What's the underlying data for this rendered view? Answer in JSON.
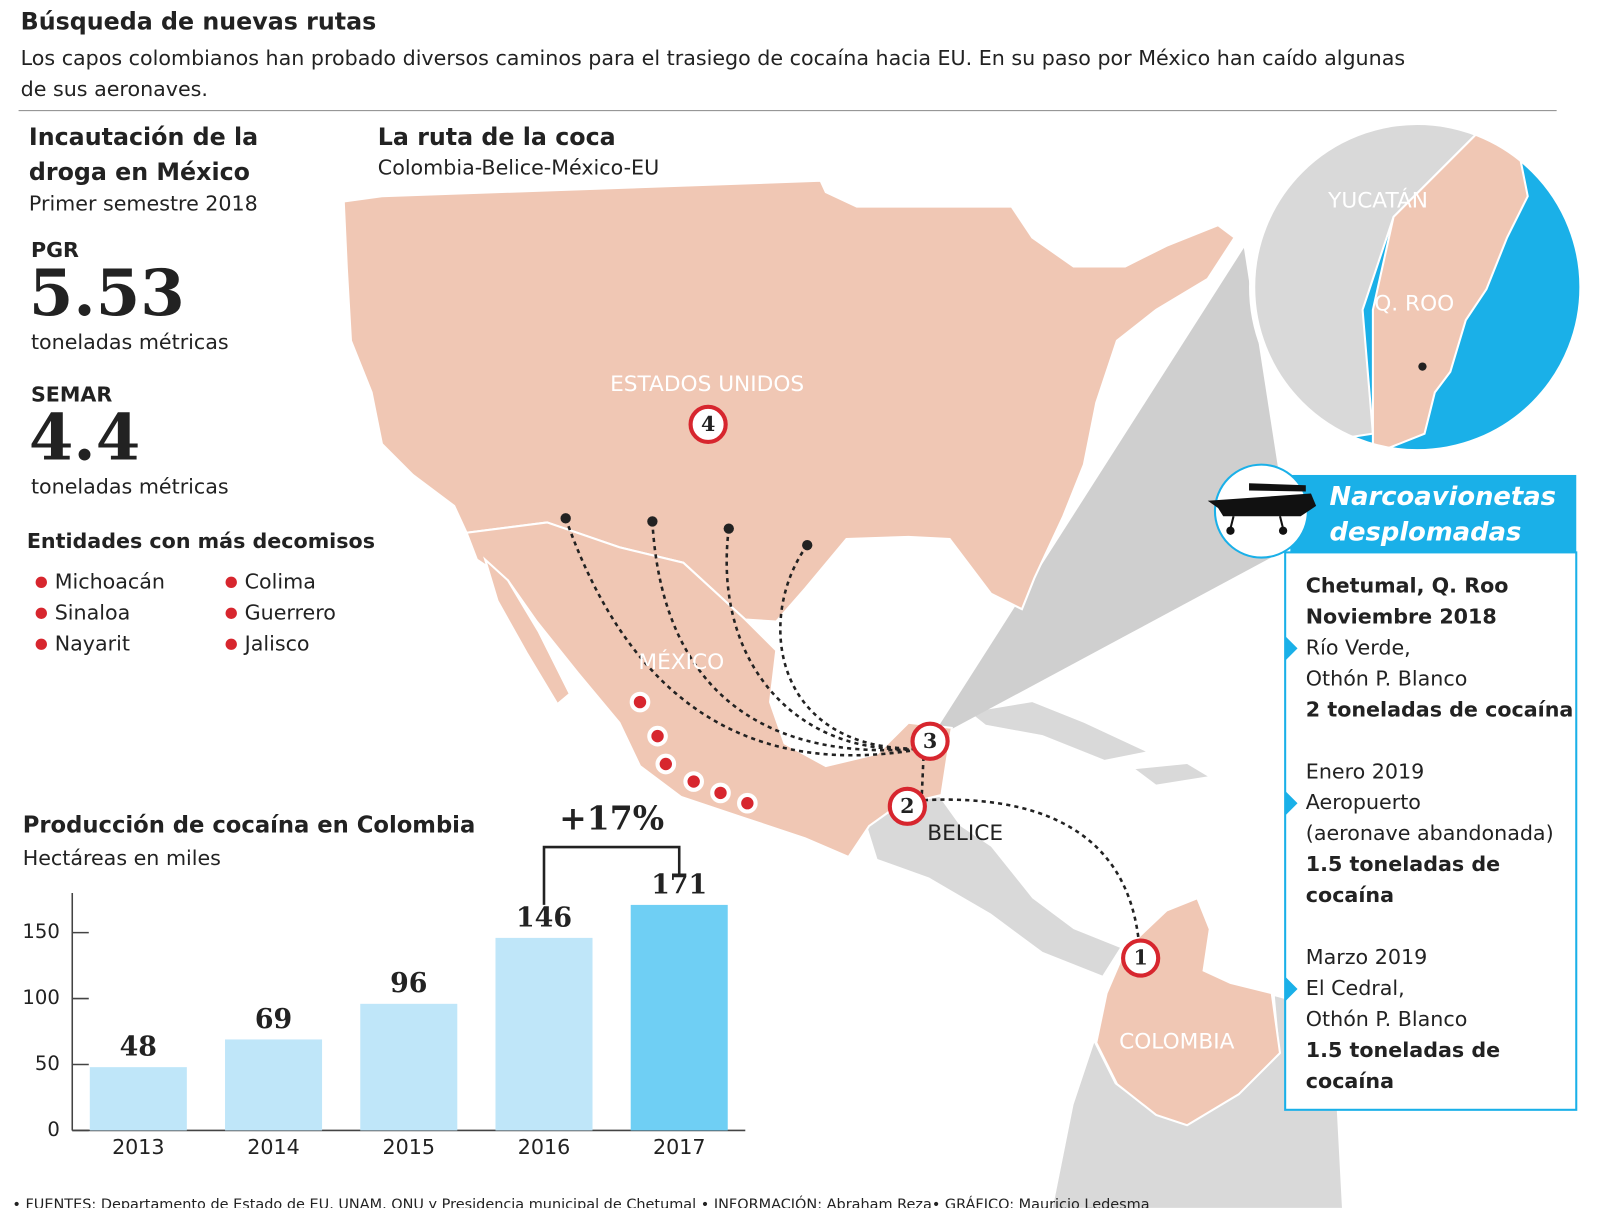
{
  "header": {
    "title": "Búsqueda de nuevas rutas",
    "subtitle": [
      "Los capos colombianos han probado diversos caminos para el trasiego de cocaína hacia EU. En su paso por México han caído algunas",
      "de sus aeronaves."
    ]
  },
  "seizures": {
    "title": [
      "Incautación de la",
      "droga en México"
    ],
    "subtitle": "Primer semestre 2018",
    "items": [
      {
        "agency": "PGR",
        "amount": 5.53,
        "unit": "toneladas métricas"
      },
      {
        "agency": "SEMAR",
        "amount": 4.4,
        "unit": "toneladas métricas"
      }
    ],
    "states_title": "Entidades con más decomisos",
    "states": [
      "Michoacán",
      "Sinaloa",
      "Nayarit",
      "Colima",
      "Guerrero",
      "Jalisco"
    ]
  },
  "map": {
    "title": "La ruta de la coca",
    "subtitle": "Colombia-Belice-México-EU",
    "labels": {
      "usa": "ESTADOS UNIDOS",
      "mexico": "MÉXICO",
      "belize": "BELICE",
      "colombia": "COLOMBIA",
      "yucatan": "YUCATÁN",
      "qroo": "Q. ROO"
    },
    "steps": [
      "1",
      "2",
      "3",
      "4"
    ]
  },
  "crashes": {
    "title": [
      "Narcoavionetas",
      "desplomadas"
    ],
    "events": [
      {
        "place": "Chetumal, Q. Roo",
        "date": "Noviembre 2018",
        "location": [
          "Río Verde,",
          "Othón P. Blanco"
        ],
        "amount": [
          "2 toneladas de cocaína"
        ]
      },
      {
        "date": "Enero 2019",
        "location": [
          "Aeropuerto",
          "(aeronave abandonada)"
        ],
        "amount": [
          "1.5 toneladas de",
          "cocaína"
        ]
      },
      {
        "date": "Marzo 2019",
        "location": [
          "El Cedral,",
          "Othón P. Blanco"
        ],
        "amount": [
          "1.5 toneladas de",
          "cocaína"
        ]
      }
    ]
  },
  "chart_data": {
    "type": "bar",
    "title": "Producción de cocaína en Colombia",
    "subtitle": "Hectáreas en miles",
    "categories": [
      "2013",
      "2014",
      "2015",
      "2016",
      "2017"
    ],
    "values": [
      48,
      69,
      96,
      146,
      171
    ],
    "colors": [
      "#bfe6f9",
      "#bfe6f9",
      "#bfe6f9",
      "#bfe6f9",
      "#6fcff4"
    ],
    "ylim": [
      0,
      180
    ],
    "yticks": [
      0,
      50,
      100,
      150
    ],
    "annotation": "+17%"
  },
  "footer": "• FUENTES: Departamento de Estado de EU, UNAM, ONU y Presidencia municipal de Chetumal • INFORMACIÓN: Abraham Reza• GRÁFICO: Mauricio Ledesma"
}
